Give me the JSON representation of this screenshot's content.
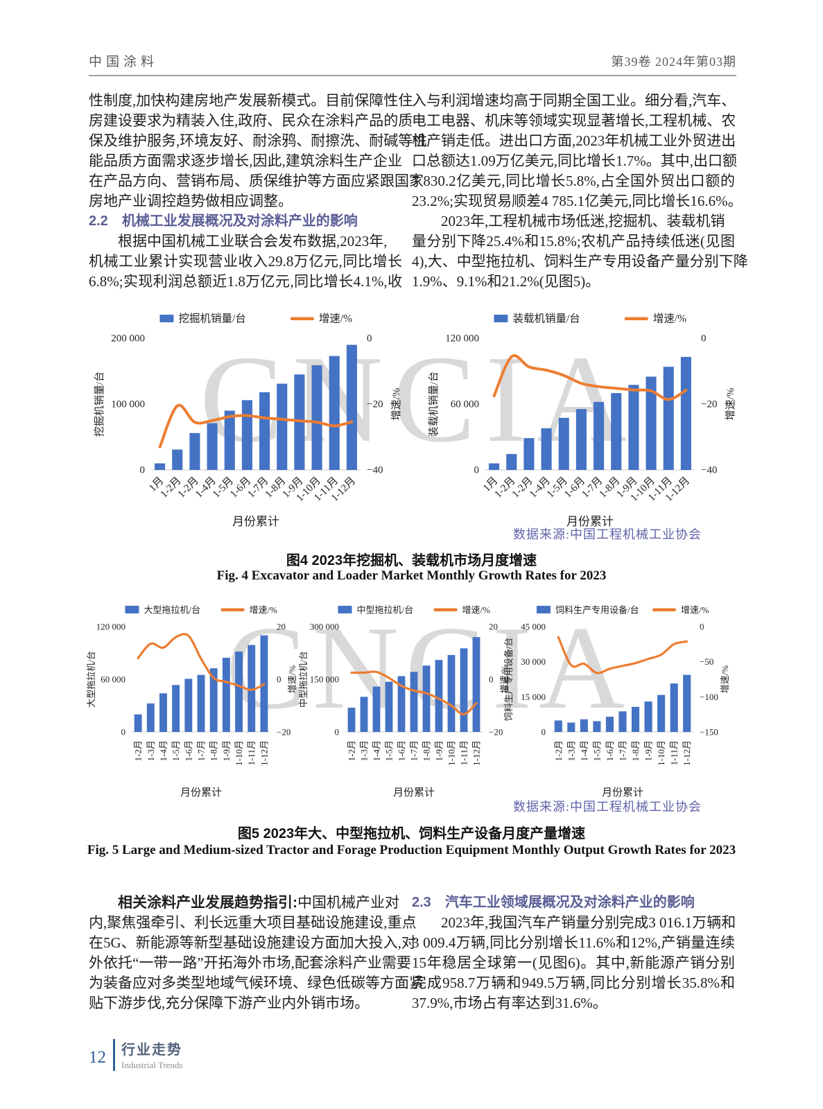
{
  "header": {
    "journal": "中国涂料",
    "issue": "第39卷   2024年第03期"
  },
  "watermark": "CNCIA",
  "colors": {
    "bar": "#4472C4",
    "line": "#ED7D31",
    "heading": "#5A5E94",
    "source": "#5F63A8"
  },
  "top_left": {
    "para1_lines": [
      "性制度,加快构建房地产发展新模式。目前保障性住",
      "房建设要求为精装入住,政府、民众在涂料产品的质",
      "保及维护服务,环境友好、耐涂鸦、耐擦洗、耐碱等性",
      "能品质方面需求逐步增长,因此,建筑涂料生产企业",
      "在产品方向、营销布局、质保维护等方面应紧跟国家",
      "房地产业调控趋势做相应调整。"
    ],
    "heading": {
      "num": "2.2",
      "title": "机械工业发展概况及对涂料产业的影响"
    },
    "para2_lines": [
      "根据中国机械工业联合会发布数据,2023年,",
      "机械工业累计实现营业收入29.8万亿元,同比增长",
      "6.8%;实现利润总额近1.8万亿元,同比增长4.1%,收"
    ]
  },
  "top_right": {
    "para1_lines": [
      "入与利润增速均高于同期全国工业。细分看,汽车、",
      "电工电器、机床等领域实现显著增长,工程机械、农",
      "机产销走低。进出口方面,2023年机械工业外贸进出",
      "口总额达1.09万亿美元,同比增长1.7%。其中,出口额",
      "7 830.2亿美元,同比增长5.8%,占全国外贸出口额的",
      "23.2%;实现贸易顺差4 785.1亿美元,同比增长16.6%。"
    ],
    "para2_lines": [
      "2023年,工程机械市场低迷,挖掘机、装载机销",
      "量分别下降25.4%和15.8%;农机产品持续低迷(见图",
      "4),大、中型拖拉机、饲料生产专用设备产量分别下降",
      "1.9%、9.1%和21.2%(见图5)。"
    ]
  },
  "fig4": {
    "source": "数据来源:中国工程机械工业协会",
    "caption_cn": "图4   2023年挖掘机、装载机市场月度增速",
    "caption_en": "Fig. 4   Excavator and Loader Market Monthly Growth Rates for 2023"
  },
  "fig5": {
    "source": "数据来源:中国工程机械工业协会",
    "caption_cn": "图5   2023年大、中型拖拉机、饲料生产设备月度产量增速",
    "caption_en": "Fig. 5   Large and Medium-sized Tractor and Forage Production Equipment Monthly Output Growth Rates for 2023"
  },
  "bottom_left": {
    "lead_bold": "相关涂料产业发展趋势指引:",
    "lead_rest": "中国机械产业对",
    "lines": [
      "内,聚焦强牵引、利长远重大项目基础设施建设,重点",
      "在5G、新能源等新型基础设施建设方面加大投入,对",
      "外依托“一带一路”开拓海外市场,配套涂料产业需要",
      "为装备应对多类型地域气候环境、绿色低碳等方面紧",
      "贴下游步伐,充分保障下游产业内外销市场。"
    ]
  },
  "bottom_right": {
    "heading": {
      "num": "2.3",
      "title": "汽车工业领域展概况及对涂料产业的影响"
    },
    "lines": [
      "2023年,我国汽车产销量分别完成3 016.1万辆和",
      "3 009.4万辆,同比分别增长11.6%和12%,产销量连续",
      "15年稳居全球第一(见图6)。其中,新能源产销分别",
      "完成958.7万辆和949.5万辆,同比分别增长35.8%和",
      "37.9%,市场占有率达到31.6%。"
    ]
  },
  "footer": {
    "page": "12",
    "section_cn": "行业走势",
    "section_en": "Industrial Trends"
  },
  "chart_data": [
    {
      "id": "excavator-sales",
      "type": "bar+line",
      "legend": [
        "挖掘机销量/台",
        "增速/%"
      ],
      "categories": [
        "1月",
        "1-2月",
        "1-2月",
        "1-4月",
        "1-5月",
        "1-6月",
        "1-7月",
        "1-8月",
        "1-9月",
        "1-10月",
        "1-11月",
        "1-12月"
      ],
      "bars": [
        10000,
        31000,
        56000,
        71000,
        90000,
        106000,
        118000,
        131000,
        145000,
        159000,
        173000,
        190000
      ],
      "line": [
        -33,
        -20.5,
        -25.5,
        -25,
        -23.8,
        -23.5,
        -24.2,
        -24.6,
        -25.1,
        -25.5,
        -26.6,
        -25.4
      ],
      "left_axis": {
        "title": "挖掘机销量/台",
        "ticks": [
          "0",
          "100 000",
          "200 000"
        ],
        "max": 200000
      },
      "right_axis": {
        "title": "增速/%",
        "ticks": [
          "−40",
          "−20",
          "0"
        ],
        "min": -40,
        "max": 0
      },
      "x_title": "月份累计"
    },
    {
      "id": "loader-sales",
      "type": "bar+line",
      "legend": [
        "装载机销量/台",
        "增速/%"
      ],
      "categories": [
        "1月",
        "1-2月",
        "1-2月",
        "1-4月",
        "1-5月",
        "1-6月",
        "1-7月",
        "1-8月",
        "1-9月",
        "1-10月",
        "1-11月",
        "1-12月"
      ],
      "bars": [
        6000,
        14500,
        29000,
        38000,
        47500,
        55500,
        62000,
        70000,
        77500,
        85000,
        94000,
        103000
      ],
      "line": [
        -17.5,
        -5.6,
        -8.7,
        -9.7,
        -11.3,
        -13.7,
        -14.7,
        -15.2,
        -15.7,
        -16,
        -18.6,
        -15.8
      ],
      "left_axis": {
        "title": "装载机销量/台",
        "ticks": [
          "0",
          "60 000",
          "120 000"
        ],
        "max": 120000
      },
      "right_axis": {
        "title": "增速/%",
        "ticks": [
          "−40",
          "−20",
          "0"
        ],
        "min": -40,
        "max": 0
      },
      "x_title": "月份累计"
    },
    {
      "id": "large-tractor-output",
      "type": "bar+line",
      "legend": [
        "大型拖拉机/台",
        "增速/%"
      ],
      "categories": [
        "1-2月",
        "1-3月",
        "1-4月",
        "1-5月",
        "1-6月",
        "1-7月",
        "1-8月",
        "1-9月",
        "1-10月",
        "1-11月",
        "1-12月"
      ],
      "bars": [
        20000,
        32500,
        44000,
        53500,
        60500,
        65000,
        72500,
        84500,
        91500,
        99000,
        110000
      ],
      "line": [
        8,
        13.5,
        12,
        16,
        16.5,
        7.8,
        0.5,
        -1,
        -2.5,
        -4,
        -1.9
      ],
      "left_axis": {
        "title": "大型拖拉机/台",
        "ticks": [
          "0",
          "60 000",
          "120 000"
        ],
        "max": 120000
      },
      "right_axis": {
        "title": "增速/%",
        "ticks": [
          "−20",
          "0",
          "20"
        ],
        "min": -20,
        "max": 20
      },
      "x_title": "月份累计"
    },
    {
      "id": "medium-tractor-output",
      "type": "bar+line",
      "legend": [
        "中型拖拉机/台",
        "增速/%"
      ],
      "categories": [
        "1-2月",
        "1-3月",
        "1-4月",
        "1-5月",
        "1-6月",
        "1-7月",
        "1-8月",
        "1-9月",
        "1-10月",
        "1-11月",
        "1-12月"
      ],
      "bars": [
        69000,
        100000,
        129000,
        143000,
        159000,
        171000,
        189000,
        205000,
        219000,
        238000,
        270000
      ],
      "line": [
        2.5,
        2.5,
        2.8,
        0.5,
        -2.5,
        -4.3,
        -5.3,
        -7.4,
        -10,
        -13.3,
        -9.1
      ],
      "left_axis": {
        "title": "中型拖拉机/台",
        "ticks": [
          "0",
          "150 000",
          "300 000"
        ],
        "max": 300000
      },
      "right_axis": {
        "title": "增速/%",
        "ticks": [
          "−20",
          "0",
          "20"
        ],
        "min": -20,
        "max": 20
      },
      "x_title": "月份累计"
    },
    {
      "id": "feed-equipment-output",
      "type": "bar+line",
      "legend": [
        "饲料生产专用设备/台",
        "增速/%"
      ],
      "categories": [
        "1-2月",
        "1-3月",
        "1-4月",
        "1-5月",
        "1-6月",
        "1-7月",
        "1-8月",
        "1-9月",
        "1-10月",
        "1-11月",
        "1-12月"
      ],
      "bars": [
        4900,
        4000,
        5400,
        4600,
        6500,
        8800,
        10700,
        13000,
        15800,
        20700,
        24400
      ],
      "line": [
        -15,
        -55,
        -53,
        -66,
        -60,
        -56,
        -52,
        -46,
        -40,
        -25,
        -21.2
      ],
      "left_axis": {
        "title": "饲料生产专用设备/台",
        "ticks": [
          "0",
          "15 000",
          "30 000",
          "45 000"
        ],
        "max": 45000
      },
      "right_axis": {
        "title": "增速/%",
        "ticks": [
          "−150",
          "−100",
          "−50",
          "0"
        ],
        "min": -150,
        "max": 0
      },
      "x_title": "月份累计"
    }
  ]
}
